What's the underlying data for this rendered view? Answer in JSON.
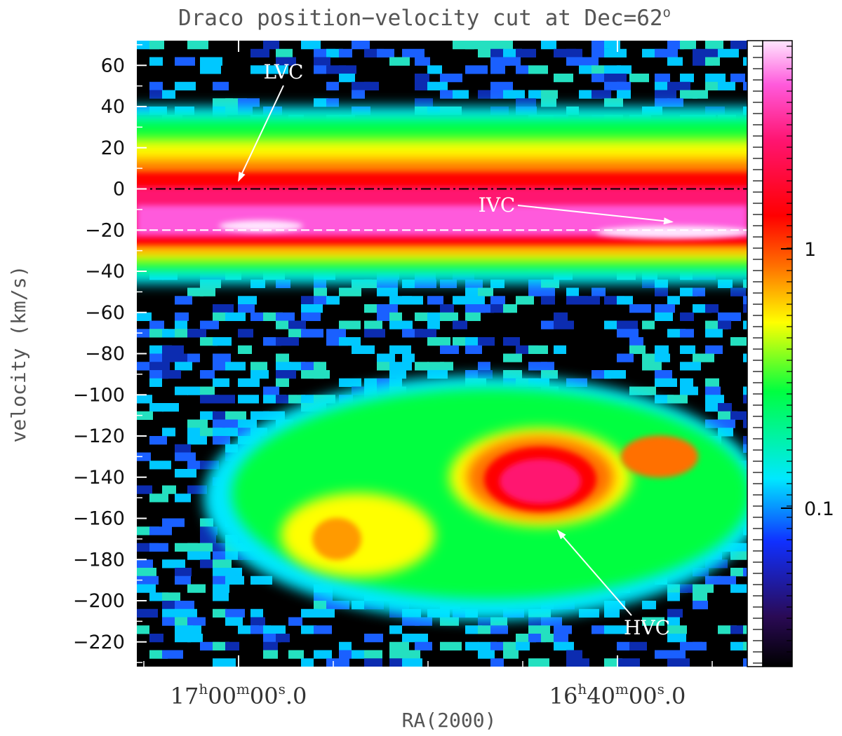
{
  "chart_data": {
    "type": "heatmap",
    "title": "Draco position−velocity cut at Dec=62°",
    "title_text": "Draco position−velocity cut at Dec=62",
    "title_degree": "o",
    "xlabel": "RA(2000)",
    "ylabel": "velocity (km/s)",
    "ylim": [
      -232,
      72
    ],
    "yticks": [
      60,
      40,
      20,
      0,
      -20,
      -40,
      -60,
      -80,
      -100,
      -120,
      -140,
      -160,
      -180,
      -200,
      -220
    ],
    "ytick_labels": [
      "60",
      "40",
      "20",
      "0",
      "−20",
      "−40",
      "−60",
      "−80",
      "−100",
      "−120",
      "−140",
      "−160",
      "−180",
      "−200",
      "−220"
    ],
    "xticks": [
      {
        "h": "17",
        "m": "00",
        "s": "00",
        "frac": "0",
        "ra_deg": 255.0
      },
      {
        "h": "16",
        "m": "40",
        "s": "00",
        "frac": "0",
        "ra_deg": 250.0
      }
    ],
    "colorbar": {
      "scale": "log",
      "tick_labels": [
        "1",
        "0.1"
      ],
      "tick_values": [
        1,
        0.1
      ],
      "colors": [
        "#000000",
        "#2a0a55",
        "#1030ff",
        "#00e8ff",
        "#00ff40",
        "#ffff00",
        "#ff7000",
        "#ff0000",
        "#ff1470",
        "#ff5adc",
        "#ffe6ff"
      ]
    },
    "reference_lines": [
      {
        "velocity": 0,
        "style": "dash-dot",
        "color": "#000000"
      },
      {
        "velocity": -20,
        "style": "dashed",
        "color": "#ffffff"
      }
    ],
    "components": [
      {
        "label": "LVC",
        "velocity_center": 0
      },
      {
        "label": "IVC",
        "velocity_center": -20
      },
      {
        "label": "HVC",
        "velocity_center": -150
      }
    ]
  }
}
